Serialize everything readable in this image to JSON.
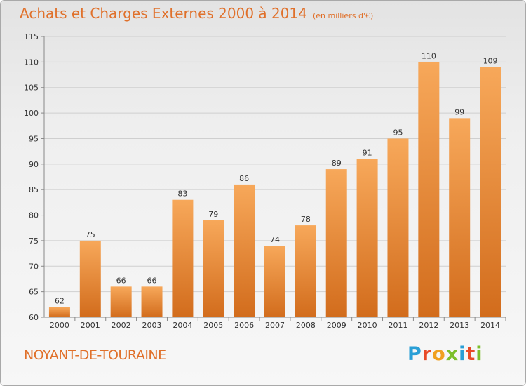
{
  "header": {
    "title": "Achats et Charges Externes 2000 à 2014",
    "subtitle": "(en milliers d'€)"
  },
  "footer": {
    "commune": "NOYANT-DE-TOURAINE",
    "logo_text": "Proxiti"
  },
  "colors": {
    "accent": "#e0702a",
    "bar_light": "#f7a85a",
    "bar_dark": "#d86f1e",
    "grid": "#cfcfcf",
    "logo_letters": [
      "#2a9fd6",
      "#e84a27",
      "#f0a020",
      "#7cbf2a",
      "#2a9fd6",
      "#e84a27",
      "#7cbf2a"
    ]
  },
  "chart_data": {
    "type": "bar",
    "title": "Achats et Charges Externes 2000 à 2014",
    "subtitle": "(en milliers d'€)",
    "categories": [
      "2000",
      "2001",
      "2002",
      "2003",
      "2004",
      "2005",
      "2006",
      "2007",
      "2008",
      "2009",
      "2010",
      "2011",
      "2012",
      "2013",
      "2014"
    ],
    "values": [
      62,
      75,
      66,
      66,
      83,
      79,
      86,
      74,
      78,
      89,
      91,
      95,
      110,
      99,
      109
    ],
    "value_labels": [
      "62",
      "75",
      "66",
      "66",
      "83",
      "79",
      "86",
      "74",
      "78",
      "89",
      "91",
      "95",
      "110",
      "99",
      "109"
    ],
    "ylim": [
      60,
      115
    ],
    "yticks": [
      60,
      65,
      70,
      75,
      80,
      85,
      90,
      95,
      100,
      105,
      110,
      115
    ],
    "ytick_labels": [
      "60",
      "65",
      "70",
      "75",
      "80",
      "85",
      "90",
      "95",
      "100",
      "105",
      "110",
      "115"
    ],
    "grid": true,
    "xlabel": "",
    "ylabel": ""
  }
}
